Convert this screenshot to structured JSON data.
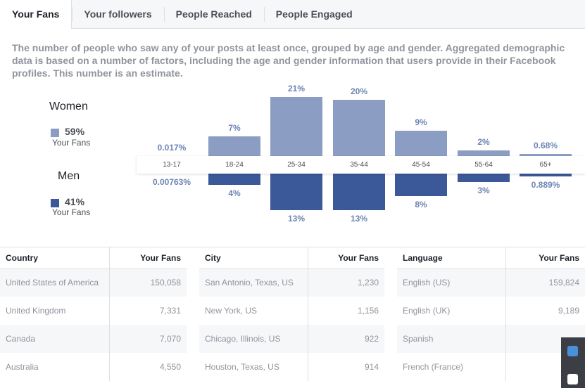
{
  "tabs": [
    "Your Fans",
    "Your followers",
    "People Reached",
    "People Engaged"
  ],
  "description": "The number of people who saw any of your posts at least once, grouped by age and gender. Aggregated demographic data is based on a number of factors, including the age and gender information that users provide in their Facebook profiles. This number is an estimate.",
  "legend": {
    "women": {
      "title": "Women",
      "pct": "59%",
      "sub": "Your Fans",
      "color": "#8b9dc3"
    },
    "men": {
      "title": "Men",
      "pct": "41%",
      "sub": "Your Fans",
      "color": "#3b5998"
    }
  },
  "chart_data": {
    "type": "bar",
    "categories": [
      "13-17",
      "18-24",
      "25-34",
      "35-44",
      "45-54",
      "55-64",
      "65+"
    ],
    "series": [
      {
        "name": "Women",
        "values": [
          0.017,
          7,
          21,
          20,
          9,
          2,
          0.68
        ],
        "labels": [
          "0.017%",
          "7%",
          "21%",
          "20%",
          "9%",
          "2%",
          "0.68%"
        ]
      },
      {
        "name": "Men",
        "values": [
          0.00763,
          4,
          13,
          13,
          8,
          3,
          0.889
        ],
        "labels": [
          "0.00763%",
          "4%",
          "13%",
          "13%",
          "8%",
          "3%",
          "0.889%"
        ]
      }
    ]
  },
  "tables": [
    {
      "headers": [
        "Country",
        "Your Fans"
      ],
      "rows": [
        [
          "United States of America",
          "150,058"
        ],
        [
          "United Kingdom",
          "7,331"
        ],
        [
          "Canada",
          "7,070"
        ],
        [
          "Australia",
          "4,550"
        ]
      ]
    },
    {
      "headers": [
        "City",
        "Your Fans"
      ],
      "rows": [
        [
          "San Antonio, Texas, US",
          "1,230"
        ],
        [
          "New York, US",
          "1,156"
        ],
        [
          "Chicago, Illinois, US",
          "922"
        ],
        [
          "Houston, Texas, US",
          "914"
        ]
      ]
    },
    {
      "headers": [
        "Language",
        "Your Fans"
      ],
      "rows": [
        [
          "English (US)",
          "159,824"
        ],
        [
          "English (UK)",
          "9,189"
        ],
        [
          "Spanish",
          ""
        ],
        [
          "French (France)",
          ""
        ]
      ]
    }
  ]
}
